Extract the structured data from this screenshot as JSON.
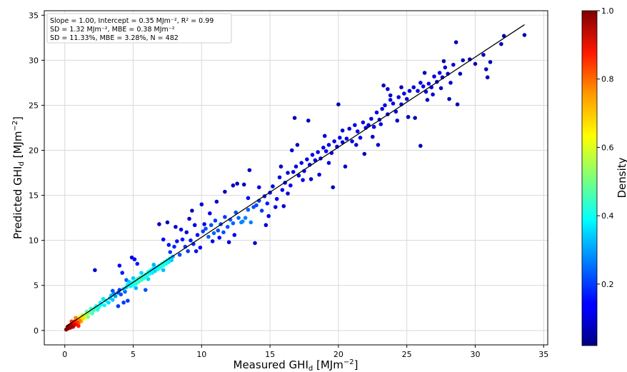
{
  "chart_data": {
    "type": "scatter",
    "title": "",
    "xlabel": "Measured GHI",
    "xlabel_sub": "d",
    "xlabel_unit": " [MJm",
    "xlabel_exp": "−2",
    "xlabel_end": "]",
    "ylabel": "Predicted GHI",
    "ylabel_sub": "d",
    "ylabel_unit": " [MJm",
    "ylabel_exp": "−2",
    "ylabel_end": "]",
    "xlim": [
      -1.5,
      35.3
    ],
    "ylim": [
      -1.6,
      35.5
    ],
    "xticks": [
      0,
      5,
      10,
      15,
      20,
      25,
      30,
      35
    ],
    "yticks": [
      0,
      5,
      10,
      15,
      20,
      25,
      30,
      35
    ],
    "grid": true,
    "annotations": [
      "Slope = 1.00, Intercept = 0.35 MJm⁻², R² = 0.99",
      "SD = 1.32 MJm⁻², MBE  = 0.38 MJm⁻²",
      "SD = 11.33%, MBE  = 3.28%, N = 482"
    ],
    "fit_line": {
      "slope": 1.0,
      "intercept": 0.35,
      "x_range": [
        0.1,
        33.6
      ]
    },
    "colorbar": {
      "label": "Density",
      "ticks": [
        0.2,
        0.4,
        0.6,
        0.8,
        1.0
      ],
      "tick_labels": [
        "0.2",
        "0.4",
        "0.6",
        "0.8",
        "1.0"
      ],
      "range": [
        0.02,
        1.0
      ],
      "colormap": "jet"
    },
    "points": [
      [
        0.1,
        0.1,
        1.0
      ],
      [
        0.2,
        0.2,
        1.0
      ],
      [
        0.3,
        0.3,
        0.98
      ],
      [
        0.2,
        0.4,
        0.97
      ],
      [
        0.4,
        0.3,
        0.96
      ],
      [
        0.5,
        0.5,
        0.95
      ],
      [
        0.3,
        0.5,
        0.94
      ],
      [
        0.6,
        0.4,
        0.93
      ],
      [
        0.4,
        0.6,
        0.92
      ],
      [
        0.7,
        0.6,
        0.9
      ],
      [
        0.5,
        0.7,
        0.88
      ],
      [
        0.8,
        0.7,
        0.86
      ],
      [
        0.6,
        0.8,
        0.84
      ],
      [
        0.9,
        0.9,
        0.82
      ],
      [
        0.7,
        1.0,
        0.8
      ],
      [
        1.0,
        0.8,
        0.78
      ],
      [
        1.1,
        1.1,
        0.75
      ],
      [
        0.9,
        1.2,
        0.72
      ],
      [
        1.2,
        1.0,
        0.7
      ],
      [
        1.3,
        1.4,
        0.66
      ],
      [
        1.1,
        1.5,
        0.63
      ],
      [
        1.4,
        1.3,
        0.6
      ],
      [
        1.5,
        1.6,
        0.57
      ],
      [
        1.3,
        1.7,
        0.55
      ],
      [
        1.6,
        1.8,
        0.52
      ],
      [
        1.7,
        1.5,
        0.5
      ],
      [
        1.8,
        2.0,
        0.48
      ],
      [
        1.6,
        2.1,
        0.47
      ],
      [
        2.0,
        1.9,
        0.45
      ],
      [
        2.1,
        2.2,
        0.44
      ],
      [
        1.9,
        2.4,
        0.43
      ],
      [
        2.2,
        2.5,
        0.42
      ],
      [
        2.4,
        2.3,
        0.41
      ],
      [
        2.3,
        2.7,
        0.4
      ],
      [
        2.5,
        2.6,
        0.4
      ],
      [
        2.7,
        2.9,
        0.39
      ],
      [
        2.6,
        3.1,
        0.38
      ],
      [
        2.9,
        2.8,
        0.37
      ],
      [
        3.0,
        3.3,
        0.36
      ],
      [
        2.8,
        3.5,
        0.35
      ],
      [
        3.2,
        3.1,
        0.34
      ],
      [
        3.3,
        3.6,
        0.33
      ],
      [
        3.5,
        3.4,
        0.32
      ],
      [
        3.4,
        3.9,
        0.3
      ],
      [
        3.7,
        3.8,
        0.28
      ],
      [
        3.6,
        4.1,
        0.25
      ],
      [
        3.9,
        4.2,
        0.22
      ],
      [
        4.1,
        4.0,
        0.2
      ],
      [
        4.0,
        4.5,
        0.18
      ],
      [
        0.8,
        1.4,
        0.75
      ],
      [
        1.0,
        0.5,
        0.85
      ],
      [
        0.5,
        1.0,
        0.83
      ],
      [
        4.3,
        4.6,
        0.32
      ],
      [
        4.5,
        4.8,
        0.34
      ],
      [
        4.6,
        5.1,
        0.36
      ],
      [
        4.8,
        4.9,
        0.37
      ],
      [
        4.9,
        5.3,
        0.38
      ],
      [
        5.0,
        5.0,
        0.39
      ],
      [
        5.1,
        5.5,
        0.4
      ],
      [
        5.2,
        5.2,
        0.41
      ],
      [
        5.3,
        5.7,
        0.42
      ],
      [
        5.4,
        5.4,
        0.42
      ],
      [
        5.5,
        5.9,
        0.43
      ],
      [
        5.6,
        5.6,
        0.43
      ],
      [
        5.7,
        6.0,
        0.42
      ],
      [
        5.8,
        5.8,
        0.42
      ],
      [
        5.9,
        6.2,
        0.41
      ],
      [
        6.0,
        6.0,
        0.4
      ],
      [
        6.1,
        6.5,
        0.39
      ],
      [
        6.2,
        6.3,
        0.38
      ],
      [
        6.3,
        6.7,
        0.37
      ],
      [
        6.4,
        6.4,
        0.36
      ],
      [
        6.5,
        6.9,
        0.35
      ],
      [
        6.6,
        6.6,
        0.34
      ],
      [
        6.7,
        7.0,
        0.36
      ],
      [
        6.8,
        6.8,
        0.38
      ],
      [
        6.9,
        7.2,
        0.39
      ],
      [
        7.0,
        7.0,
        0.4
      ],
      [
        7.1,
        7.4,
        0.41
      ],
      [
        7.2,
        7.2,
        0.41
      ],
      [
        7.3,
        7.6,
        0.4
      ],
      [
        7.4,
        7.4,
        0.39
      ],
      [
        7.5,
        7.8,
        0.38
      ],
      [
        7.6,
        7.6,
        0.36
      ],
      [
        7.7,
        8.0,
        0.34
      ],
      [
        7.8,
        7.8,
        0.32
      ],
      [
        7.9,
        8.2,
        0.3
      ],
      [
        5.2,
        4.7,
        0.3
      ],
      [
        5.0,
        5.8,
        0.32
      ],
      [
        4.7,
        5.4,
        0.33
      ],
      [
        6.5,
        7.3,
        0.3
      ],
      [
        7.2,
        6.7,
        0.31
      ],
      [
        6.1,
        5.7,
        0.33
      ],
      [
        5.6,
        6.4,
        0.34
      ],
      [
        2.2,
        6.7,
        0.08
      ],
      [
        4.0,
        7.2,
        0.12
      ],
      [
        4.2,
        6.4,
        0.15
      ],
      [
        4.9,
        8.1,
        0.1
      ],
      [
        5.1,
        7.9,
        0.12
      ],
      [
        5.3,
        7.4,
        0.15
      ],
      [
        3.9,
        2.7,
        0.18
      ],
      [
        4.3,
        3.1,
        0.18
      ],
      [
        3.5,
        4.4,
        0.2
      ],
      [
        4.4,
        4.3,
        0.22
      ],
      [
        4.5,
        5.6,
        0.22
      ],
      [
        5.9,
        4.5,
        0.2
      ],
      [
        4.6,
        3.3,
        0.18
      ],
      [
        6.9,
        11.8,
        0.06
      ],
      [
        7.5,
        12.0,
        0.06
      ],
      [
        8.1,
        11.5,
        0.08
      ],
      [
        9.3,
        13.3,
        0.05
      ],
      [
        7.2,
        10.1,
        0.12
      ],
      [
        7.6,
        9.5,
        0.14
      ],
      [
        7.7,
        8.7,
        0.18
      ],
      [
        8.0,
        9.3,
        0.16
      ],
      [
        8.2,
        9.9,
        0.14
      ],
      [
        8.4,
        8.4,
        0.2
      ],
      [
        8.6,
        10.1,
        0.15
      ],
      [
        8.8,
        9.3,
        0.18
      ],
      [
        9.0,
        8.8,
        0.18
      ],
      [
        9.2,
        10.0,
        0.15
      ],
      [
        9.4,
        9.6,
        0.16
      ],
      [
        9.6,
        8.8,
        0.14
      ],
      [
        9.7,
        10.6,
        0.14
      ],
      [
        9.9,
        9.2,
        0.12
      ],
      [
        10.1,
        11.0,
        0.18
      ],
      [
        10.3,
        11.3,
        0.2
      ],
      [
        10.5,
        10.4,
        0.22
      ],
      [
        10.7,
        11.7,
        0.2
      ],
      [
        10.9,
        10.8,
        0.22
      ],
      [
        11.0,
        12.2,
        0.18
      ],
      [
        11.2,
        11.1,
        0.2
      ],
      [
        11.4,
        11.8,
        0.2
      ],
      [
        11.6,
        10.9,
        0.2
      ],
      [
        11.7,
        12.6,
        0.18
      ],
      [
        11.9,
        11.5,
        0.2
      ],
      [
        12.1,
        12.3,
        0.22
      ],
      [
        12.3,
        11.9,
        0.22
      ],
      [
        12.5,
        13.1,
        0.2
      ],
      [
        12.7,
        12.5,
        0.22
      ],
      [
        12.9,
        12.0,
        0.25
      ],
      [
        13.0,
        12.1,
        0.26
      ],
      [
        13.2,
        12.5,
        0.25
      ],
      [
        13.4,
        13.4,
        0.22
      ],
      [
        13.6,
        12.0,
        0.25
      ],
      [
        13.8,
        13.7,
        0.2
      ],
      [
        14.0,
        13.9,
        0.2
      ],
      [
        14.2,
        14.4,
        0.18
      ],
      [
        14.4,
        13.3,
        0.18
      ],
      [
        14.6,
        14.9,
        0.15
      ],
      [
        14.8,
        14.1,
        0.15
      ],
      [
        15.0,
        15.3,
        0.12
      ],
      [
        10.8,
        9.9,
        0.1
      ],
      [
        11.3,
        10.3,
        0.12
      ],
      [
        12.0,
        9.8,
        0.1
      ],
      [
        12.4,
        10.6,
        0.12
      ],
      [
        13.9,
        9.7,
        0.08
      ],
      [
        11.1,
        14.3,
        0.08
      ],
      [
        11.7,
        15.4,
        0.06
      ],
      [
        12.3,
        16.1,
        0.06
      ],
      [
        12.6,
        16.3,
        0.06
      ],
      [
        13.1,
        16.2,
        0.06
      ],
      [
        13.5,
        17.8,
        0.06
      ],
      [
        10.2,
        11.8,
        0.1
      ],
      [
        10.6,
        13.0,
        0.1
      ],
      [
        10.0,
        14.0,
        0.08
      ],
      [
        9.5,
        11.7,
        0.1
      ],
      [
        8.5,
        11.2,
        0.1
      ],
      [
        8.9,
        10.9,
        0.1
      ],
      [
        9.1,
        12.4,
        0.08
      ],
      [
        14.7,
        11.7,
        0.08
      ],
      [
        15.4,
        13.7,
        0.1
      ],
      [
        14.9,
        12.7,
        0.1
      ],
      [
        13.4,
        14.7,
        0.12
      ],
      [
        14.2,
        15.9,
        0.1
      ],
      [
        15.2,
        16.0,
        0.1
      ],
      [
        15.5,
        14.6,
        0.12
      ],
      [
        15.7,
        17.0,
        0.1
      ],
      [
        15.9,
        15.6,
        0.12
      ],
      [
        16.1,
        16.4,
        0.12
      ],
      [
        16.3,
        17.5,
        0.1
      ],
      [
        16.5,
        16.1,
        0.12
      ],
      [
        16.7,
        17.6,
        0.1
      ],
      [
        16.9,
        18.2,
        0.1
      ],
      [
        17.1,
        17.2,
        0.12
      ],
      [
        17.3,
        18.6,
        0.1
      ],
      [
        17.5,
        17.7,
        0.12
      ],
      [
        17.7,
        19.0,
        0.1
      ],
      [
        17.9,
        18.4,
        0.12
      ],
      [
        18.1,
        19.5,
        0.1
      ],
      [
        18.3,
        18.9,
        0.12
      ],
      [
        18.5,
        19.8,
        0.1
      ],
      [
        18.7,
        19.1,
        0.12
      ],
      [
        18.9,
        20.3,
        0.1
      ],
      [
        19.1,
        19.9,
        0.12
      ],
      [
        19.3,
        20.6,
        0.1
      ],
      [
        19.5,
        19.7,
        0.12
      ],
      [
        19.7,
        21.0,
        0.1
      ],
      [
        19.9,
        20.4,
        0.12
      ],
      [
        20.1,
        21.4,
        0.1
      ],
      [
        16.0,
        13.8,
        0.08
      ],
      [
        16.3,
        15.2,
        0.08
      ],
      [
        17.0,
        20.6,
        0.06
      ],
      [
        16.8,
        23.6,
        0.05
      ],
      [
        17.8,
        23.3,
        0.05
      ],
      [
        18.0,
        16.8,
        0.08
      ],
      [
        18.6,
        17.3,
        0.08
      ],
      [
        19.6,
        15.9,
        0.06
      ],
      [
        19.0,
        21.6,
        0.08
      ],
      [
        20.0,
        25.1,
        0.05
      ],
      [
        20.3,
        22.2,
        0.08
      ],
      [
        20.5,
        18.2,
        0.08
      ],
      [
        15.8,
        18.2,
        0.08
      ],
      [
        17.4,
        16.7,
        0.1
      ],
      [
        16.6,
        20.0,
        0.08
      ],
      [
        19.3,
        18.6,
        0.1
      ],
      [
        20.3,
        20.9,
        0.1
      ],
      [
        20.6,
        21.3,
        0.1
      ],
      [
        20.8,
        22.4,
        0.1
      ],
      [
        21.0,
        21.0,
        0.1
      ],
      [
        21.2,
        22.8,
        0.1
      ],
      [
        21.4,
        22.1,
        0.1
      ],
      [
        21.6,
        21.4,
        0.1
      ],
      [
        21.8,
        23.1,
        0.1
      ],
      [
        22.0,
        22.5,
        0.1
      ],
      [
        22.2,
        22.8,
        0.1
      ],
      [
        22.4,
        23.5,
        0.1
      ],
      [
        22.6,
        22.6,
        0.1
      ],
      [
        22.8,
        24.2,
        0.1
      ],
      [
        23.0,
        23.4,
        0.1
      ],
      [
        23.2,
        24.6,
        0.1
      ],
      [
        23.4,
        25.0,
        0.1
      ],
      [
        23.6,
        24.0,
        0.1
      ],
      [
        23.8,
        25.6,
        0.1
      ],
      [
        24.0,
        25.2,
        0.1
      ],
      [
        24.2,
        24.3,
        0.1
      ],
      [
        24.4,
        25.9,
        0.1
      ],
      [
        24.6,
        25.1,
        0.1
      ],
      [
        24.8,
        26.3,
        0.1
      ],
      [
        25.0,
        25.7,
        0.1
      ],
      [
        25.2,
        26.6,
        0.1
      ],
      [
        21.3,
        20.6,
        0.08
      ],
      [
        21.9,
        19.6,
        0.06
      ],
      [
        22.5,
        21.5,
        0.08
      ],
      [
        23.1,
        22.9,
        0.1
      ],
      [
        23.6,
        26.8,
        0.08
      ],
      [
        23.3,
        27.2,
        0.06
      ],
      [
        24.3,
        23.3,
        0.08
      ],
      [
        24.6,
        27.0,
        0.06
      ],
      [
        23.8,
        26.1,
        0.08
      ],
      [
        25.6,
        23.6,
        0.06
      ],
      [
        26.0,
        20.5,
        0.05
      ],
      [
        22.9,
        20.6,
        0.08
      ],
      [
        25.5,
        27.0,
        0.08
      ],
      [
        25.8,
        26.6,
        0.1
      ],
      [
        26.0,
        27.5,
        0.1
      ],
      [
        26.2,
        27.1,
        0.1
      ],
      [
        26.4,
        26.5,
        0.1
      ],
      [
        26.6,
        27.4,
        0.1
      ],
      [
        26.8,
        27.0,
        0.1
      ],
      [
        27.0,
        28.2,
        0.1
      ],
      [
        27.2,
        27.6,
        0.1
      ],
      [
        27.4,
        28.6,
        0.1
      ],
      [
        27.6,
        28.1,
        0.1
      ],
      [
        27.8,
        29.2,
        0.08
      ],
      [
        28.0,
        28.5,
        0.08
      ],
      [
        28.2,
        27.5,
        0.08
      ],
      [
        28.4,
        29.5,
        0.08
      ],
      [
        26.3,
        28.6,
        0.06
      ],
      [
        26.9,
        26.2,
        0.08
      ],
      [
        27.5,
        26.9,
        0.06
      ],
      [
        28.1,
        25.7,
        0.06
      ],
      [
        28.7,
        25.1,
        0.05
      ],
      [
        28.6,
        32.0,
        0.05
      ],
      [
        29.1,
        30.0,
        0.06
      ],
      [
        29.6,
        30.1,
        0.06
      ],
      [
        30.0,
        29.6,
        0.06
      ],
      [
        30.6,
        30.6,
        0.06
      ],
      [
        30.8,
        29.0,
        0.06
      ],
      [
        30.9,
        28.1,
        0.06
      ],
      [
        31.1,
        29.8,
        0.06
      ],
      [
        31.9,
        31.8,
        0.05
      ],
      [
        32.1,
        32.7,
        0.05
      ],
      [
        33.6,
        32.8,
        0.05
      ],
      [
        27.7,
        29.9,
        0.06
      ],
      [
        28.9,
        28.5,
        0.06
      ],
      [
        26.5,
        25.6,
        0.06
      ],
      [
        25.1,
        23.7,
        0.06
      ]
    ]
  }
}
